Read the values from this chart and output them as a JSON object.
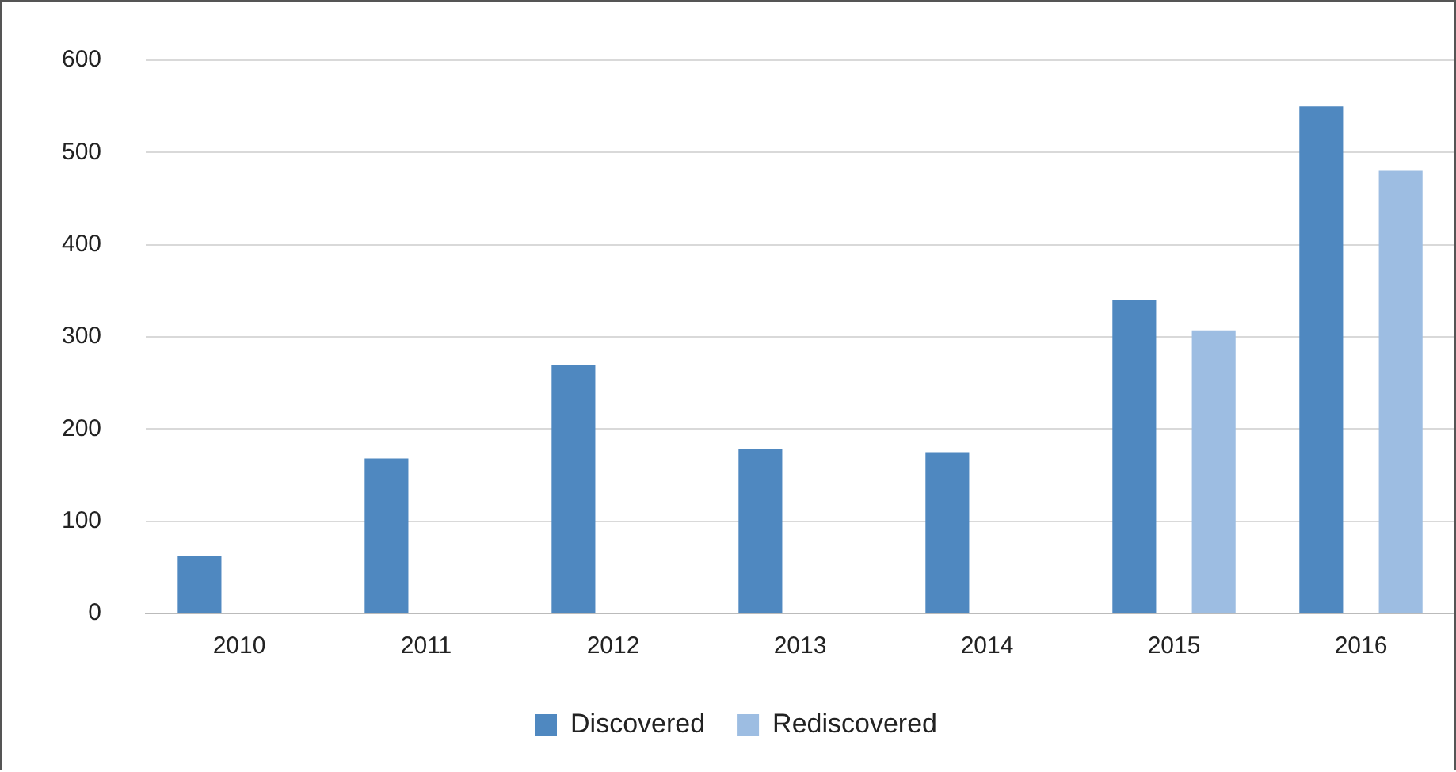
{
  "chart_data": {
    "type": "bar",
    "categories": [
      "2010",
      "2011",
      "2012",
      "2013",
      "2014",
      "2015",
      "2016"
    ],
    "series": [
      {
        "name": "Discovered",
        "color": "#4f88c0",
        "values": [
          62,
          168,
          270,
          178,
          175,
          340,
          550
        ]
      },
      {
        "name": "Rediscovered",
        "color": "#9dbde2",
        "values": [
          null,
          null,
          null,
          null,
          null,
          307,
          480
        ]
      }
    ],
    "ylim": [
      0,
      600
    ],
    "yticks": [
      0,
      100,
      200,
      300,
      400,
      500,
      600
    ],
    "grid": "y",
    "legend": "bottom"
  }
}
